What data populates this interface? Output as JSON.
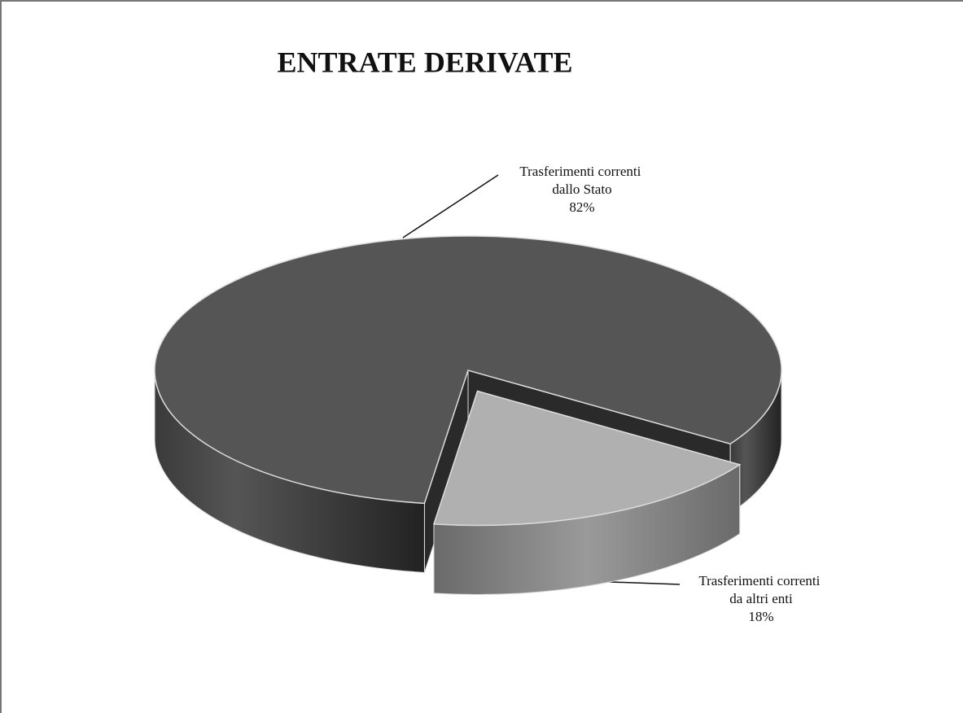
{
  "chart_data": {
    "type": "pie",
    "title": "ENTRATE DERIVATE",
    "categories": [
      "Trasferimenti correnti dallo Stato",
      "Trasferimenti correnti da altri enti"
    ],
    "values": [
      82,
      18
    ],
    "value_labels": [
      "82%",
      "18%"
    ],
    "colors": [
      "#555555",
      "#b0b0b0"
    ]
  }
}
